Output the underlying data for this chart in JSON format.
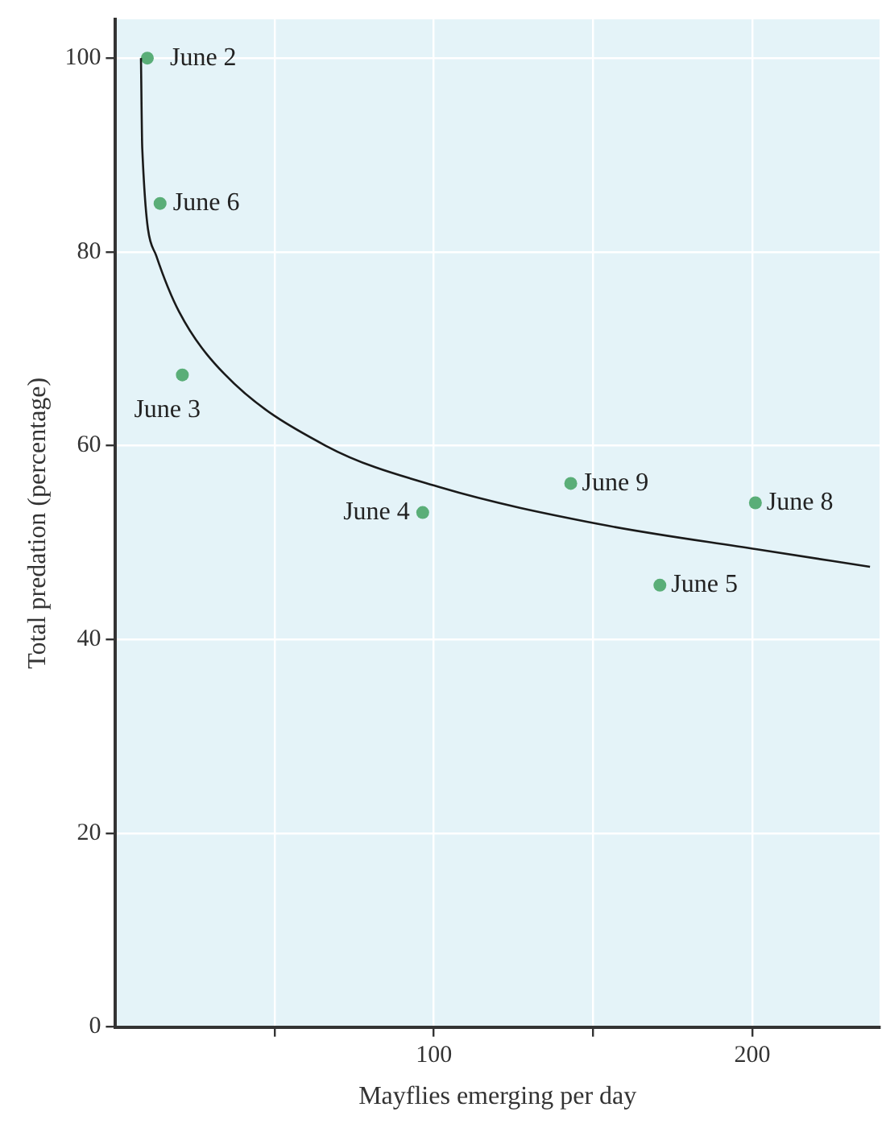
{
  "chart_data": {
    "type": "scatter",
    "xlabel": "Mayflies emerging per day",
    "ylabel": "Total predation (percentage)",
    "xlim": [
      0,
      240
    ],
    "ylim": [
      0,
      104
    ],
    "xticks": [
      {
        "value": 50,
        "label": null
      },
      100,
      {
        "value": 150,
        "label": null
      },
      200
    ],
    "yticks": [
      0,
      20,
      40,
      60,
      80,
      100
    ],
    "grid": true,
    "legend": false,
    "series": [
      {
        "type": "line",
        "color": "#1a1a1a",
        "marker": "none",
        "line_style": "solid",
        "x": [
          8,
          8.4,
          12.8,
          20,
          34.2,
          66,
          102,
          152,
          201.5,
          237
        ],
        "values": [
          100,
          90.7,
          79.6,
          73.8,
          67.4,
          60,
          55.7,
          51.9,
          49.3,
          47.5
        ]
      },
      {
        "color": "#5aae78",
        "marker": "circle",
        "x": [
          10,
          14,
          21,
          96.5,
          143,
          201,
          171
        ],
        "values": [
          100,
          85,
          67.3,
          53.1,
          56.1,
          54.1,
          45.6
        ]
      }
    ],
    "annotations": [
      {
        "text": "June 2",
        "x": 10,
        "y": 100
      },
      {
        "text": "June 6",
        "x": 14,
        "y": 85
      },
      {
        "text": "June 3",
        "x": 21,
        "y": 67.3
      },
      {
        "text": "June 4",
        "x": 96.5,
        "y": 53.1
      },
      {
        "text": "June 9",
        "x": 143,
        "y": 56.1
      },
      {
        "text": "June 8",
        "x": 201,
        "y": 54.1
      },
      {
        "text": "June 5",
        "x": 171,
        "y": 45.6
      }
    ]
  }
}
